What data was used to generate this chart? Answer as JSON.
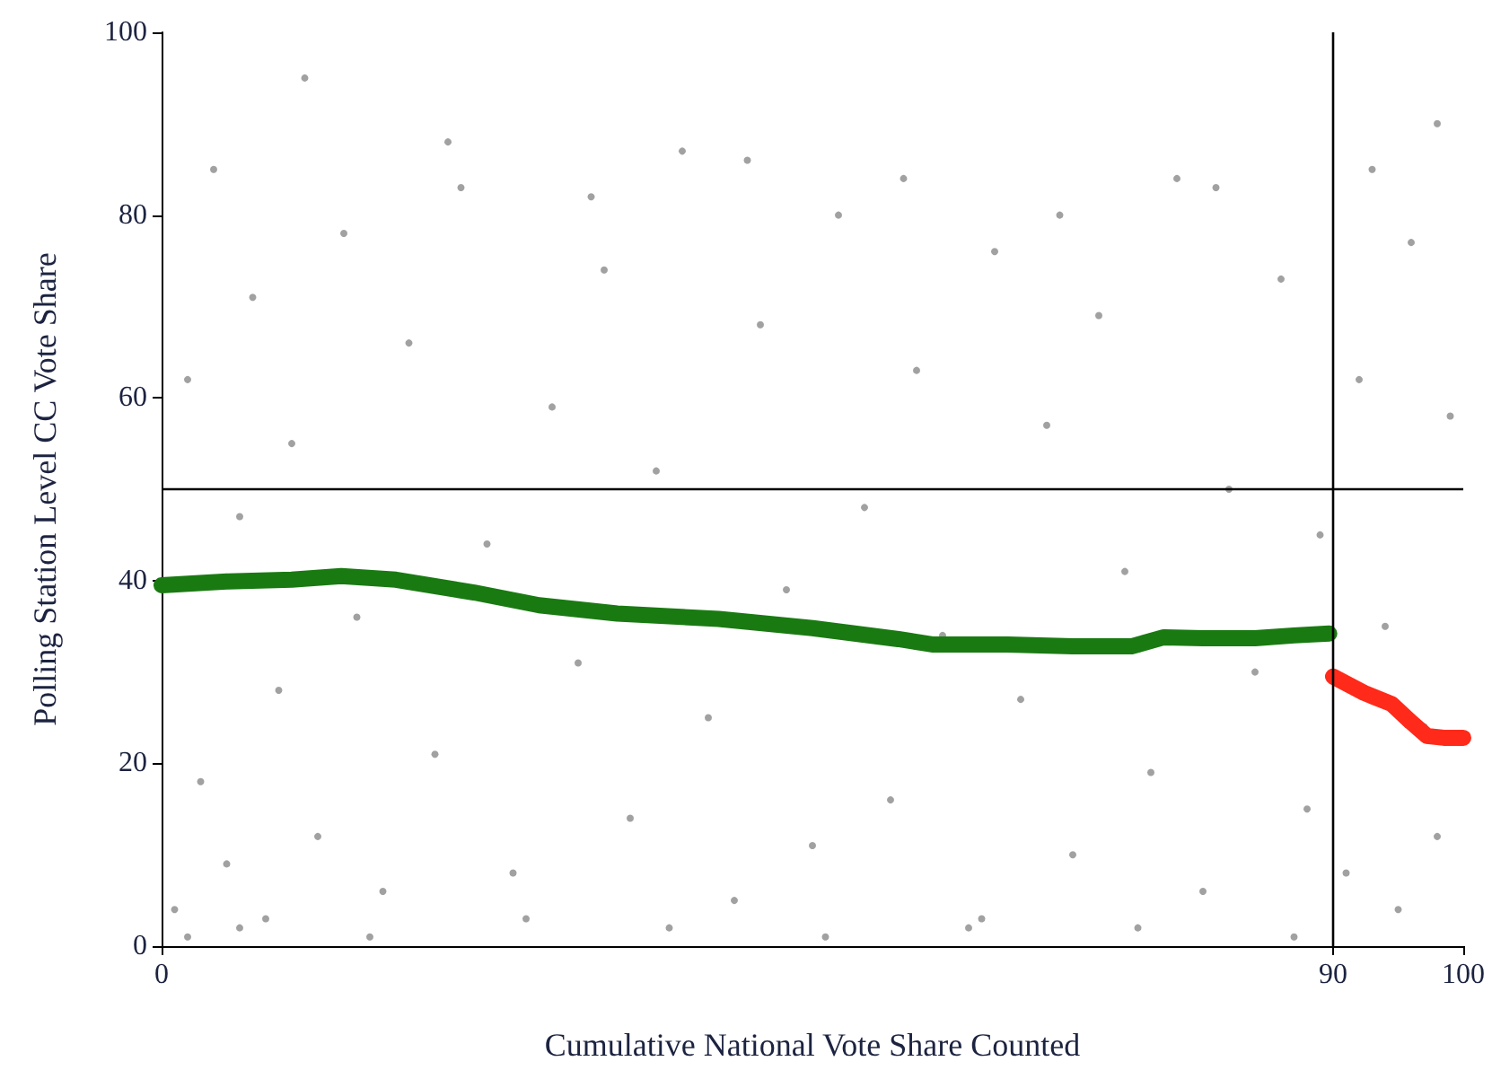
{
  "chart_data": {
    "type": "scatter",
    "xlabel": "Cumulative National Vote Share Counted",
    "ylabel": "Polling Station Level CC Vote Share",
    "xlim": [
      0,
      100
    ],
    "xticks": [
      0,
      90,
      100
    ],
    "ylim": [
      0,
      100
    ],
    "yticks": [
      0,
      20,
      40,
      60,
      80,
      100
    ],
    "grid": false,
    "series": [
      {
        "color": "#8a8a8a",
        "marker": "circle",
        "x": [
          1,
          2,
          3,
          4,
          5,
          6,
          7,
          8,
          9,
          10,
          12,
          14,
          15,
          17,
          19,
          21,
          23,
          25,
          27,
          30,
          32,
          34,
          36,
          38,
          40,
          42,
          44,
          46,
          48,
          50,
          52,
          54,
          56,
          58,
          60,
          62,
          64,
          66,
          68,
          70,
          72,
          74,
          76,
          78,
          80,
          82,
          84,
          86,
          88,
          89,
          91,
          92,
          94,
          95,
          96,
          97,
          98,
          99,
          2,
          6,
          11,
          16,
          22,
          28,
          33,
          39,
          45,
          51,
          57,
          63,
          69,
          75,
          81,
          87,
          93,
          98
        ],
        "values": [
          4,
          62,
          18,
          85,
          9,
          47,
          71,
          3,
          28,
          55,
          12,
          78,
          36,
          6,
          66,
          21,
          83,
          44,
          8,
          59,
          31,
          74,
          14,
          52,
          87,
          25,
          5,
          68,
          39,
          11,
          80,
          48,
          16,
          63,
          34,
          2,
          76,
          27,
          57,
          10,
          69,
          41,
          19,
          84,
          6,
          50,
          30,
          73,
          15,
          45,
          8,
          62,
          35,
          4,
          77,
          24,
          12,
          58,
          1,
          2,
          95,
          1,
          88,
          3,
          82,
          2,
          86,
          1,
          84,
          3,
          80,
          2,
          83,
          1,
          85,
          90
        ]
      },
      {
        "type": "line",
        "color": "#1a7a12",
        "marker": "none",
        "line_style": "solid",
        "x": [
          0,
          5,
          10,
          13.8,
          18,
          24,
          29,
          35,
          42.8,
          50,
          56.6,
          59.3,
          65,
          70,
          74.5,
          77,
          80,
          84,
          87,
          89.7
        ],
        "values": [
          39.5,
          39.9,
          40.1,
          40.5,
          40.1,
          38.7,
          37.3,
          36.4,
          35.8,
          34.8,
          33.6,
          33.0,
          33.0,
          32.8,
          32.8,
          33.8,
          33.7,
          33.7,
          34.0,
          34.2
        ]
      },
      {
        "type": "line",
        "color": "#ff2a1a",
        "marker": "none",
        "line_style": "solid",
        "x": [
          90,
          92.4,
          94.5,
          96,
          97.2,
          98.5,
          100
        ],
        "values": [
          29.5,
          27.7,
          26.5,
          24.5,
          23.0,
          22.8,
          22.8
        ]
      }
    ],
    "ref_lines": [
      {
        "axis": "x",
        "value": 90,
        "color": "#000000",
        "line_style": "solid"
      },
      {
        "axis": "y",
        "value": 50,
        "color": "#000000",
        "line_style": "solid"
      }
    ]
  }
}
